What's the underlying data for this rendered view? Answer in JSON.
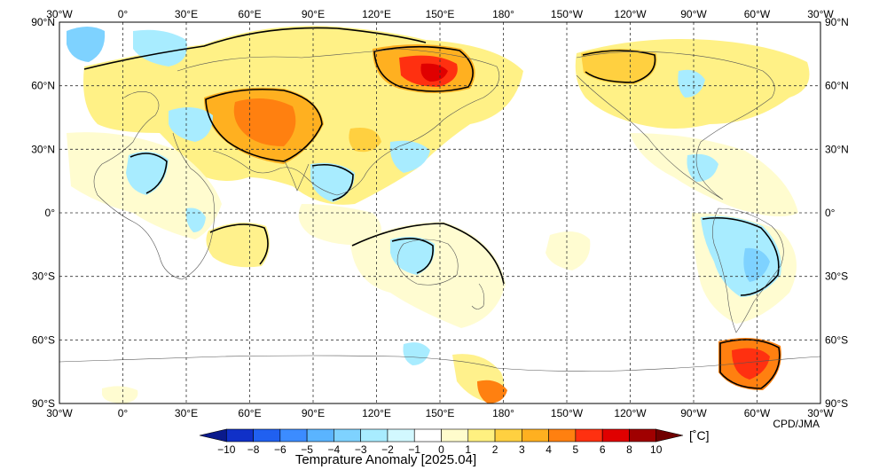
{
  "map": {
    "lon_labels": [
      "30°W",
      "0°",
      "30°E",
      "60°E",
      "90°E",
      "120°E",
      "150°E",
      "180°",
      "150°W",
      "120°W",
      "90°W",
      "60°W",
      "30°W"
    ],
    "lat_labels": [
      "90°N",
      "60°N",
      "30°N",
      "0°",
      "30°S",
      "60°S",
      "90°S"
    ],
    "credit": "CPD/JMA",
    "grid": true
  },
  "colorbar": {
    "title": "Temprature Anomaly [2025.04]",
    "unit": "[˚C]",
    "ticks": [
      "−10",
      "−8",
      "−6",
      "−5",
      "−4",
      "−3",
      "−2",
      "−1",
      "0",
      "1",
      "2",
      "3",
      "4",
      "5",
      "6",
      "8",
      "10"
    ],
    "colors": [
      "#0a1a8c",
      "#1030c8",
      "#2060f0",
      "#3c8cff",
      "#5ab4ff",
      "#7ed2ff",
      "#a8ecff",
      "#d2f8ff",
      "#ffffff",
      "#fffccc",
      "#fff080",
      "#ffd040",
      "#ffb020",
      "#ff8010",
      "#ff3010",
      "#e00000",
      "#a00000",
      "#700000"
    ]
  },
  "regions": [
    {
      "name": "central-asia-warm",
      "value": 5
    },
    {
      "name": "east-siberia-warm",
      "value": 6
    },
    {
      "name": "north-america-arctic-warm",
      "value": 3
    },
    {
      "name": "antarctic-peninsula-warm",
      "value": 6
    },
    {
      "name": "south-america-cool",
      "value": -2
    },
    {
      "name": "europe-cool",
      "value": -2
    },
    {
      "name": "australia-cool",
      "value": -1
    }
  ]
}
